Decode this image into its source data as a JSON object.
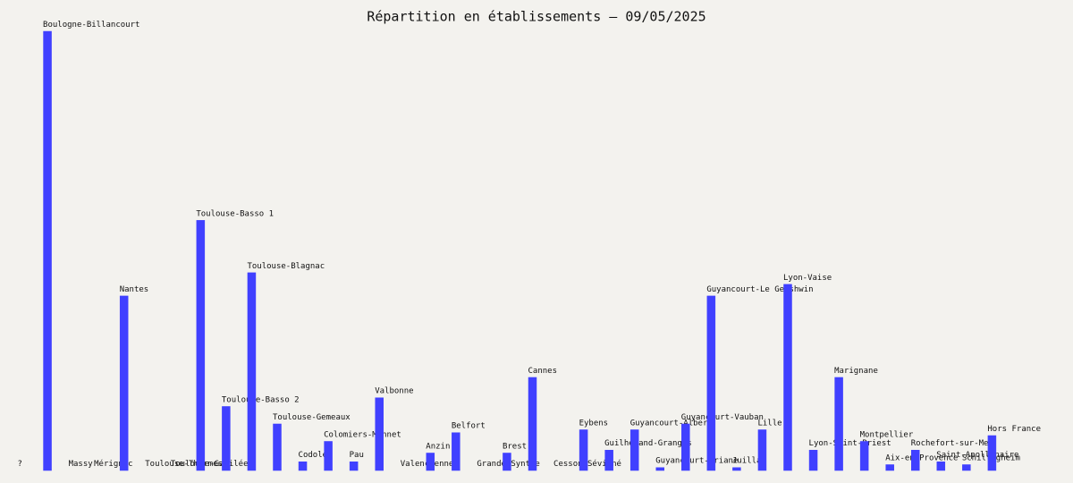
{
  "chart_data": {
    "type": "bar",
    "title": "Répartition en établissements – 09/05/2025",
    "categories": [
      "?",
      "Boulogne-Billancourt",
      "Massy",
      "Mérignac",
      "Nantes",
      "Toulouse-Thermes",
      "Toulouse-Galilée",
      "Toulouse-Basso 1",
      "Toulouse-Basso 2",
      "Toulouse-Blagnac",
      "Toulouse-Gemeaux",
      "Codolet",
      "Colomiers-Monnet",
      "Pau",
      "Valbonne",
      "Valenciennes",
      "Anzin",
      "Belfort",
      "Grande-Synthe",
      "Brest",
      "Cannes",
      "Cesson-Sévigné",
      "Eybens",
      "Guilherand-Granges",
      "Guyancourt-Albero",
      "Guyancourt-Ariane",
      "Guyancourt-Vauban",
      "Guyancourt-Le Gershwin",
      "Juillan",
      "Lille",
      "Lyon-Vaise",
      "Lyon-Saint-Priest",
      "Marignane",
      "Montpellier",
      "Aix-en-Provence",
      "Rochefort-sur-Mer",
      "Saint-Apollinaire",
      "Schiltigheim",
      "Hors France"
    ],
    "values": [
      0,
      151,
      0,
      0,
      60,
      0,
      0,
      86,
      22,
      68,
      16,
      3,
      10,
      3,
      25,
      0,
      6,
      13,
      0,
      6,
      32,
      0,
      14,
      7,
      14,
      1,
      16,
      60,
      1,
      14,
      64,
      7,
      32,
      10,
      2,
      7,
      3,
      2,
      12
    ],
    "color": "#4040ff",
    "ylim": [
      0,
      151
    ]
  }
}
